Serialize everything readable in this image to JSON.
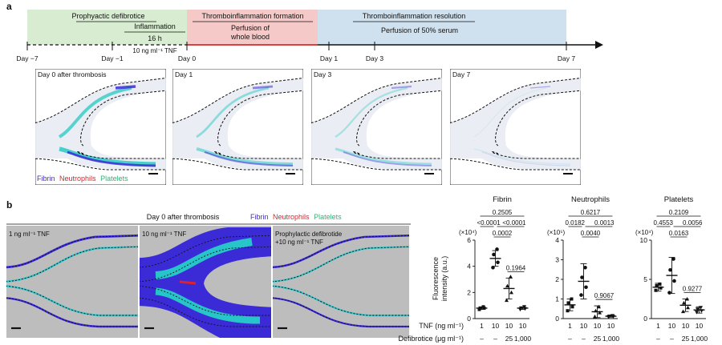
{
  "panel_a": {
    "label": "a",
    "phases": {
      "prophylactic": "Prophyactic defibrotice",
      "inflammation": "Inflammation",
      "duration": "16 h",
      "tnf": "10 ng ml⁻¹ TNF",
      "formation": "Thromboinflammation formation",
      "perfusion_blood": "Perfusion of",
      "perfusion_blood2": "whole blood",
      "resolution": "Thromboinflammation resolution",
      "perfusion_serum": "Perfusion of 50% serum"
    },
    "days": [
      "Day −7",
      "Day −1",
      "Day 0",
      "Day 1",
      "Day 3",
      "Day 7"
    ],
    "images": [
      {
        "title": "Day 0 after thrombosis"
      },
      {
        "title": "Day 1"
      },
      {
        "title": "Day 3"
      },
      {
        "title": "Day 7"
      }
    ],
    "legend": {
      "fibrin": "Fibrin",
      "neutrophils": "Neutrophils",
      "platelets": "Platelets"
    }
  },
  "panel_b": {
    "label": "b",
    "header": "Day 0 after thrombosis",
    "legend": {
      "fibrin": "Fibrin",
      "neutrophils": "Neutrophils",
      "platelets": "Platelets"
    },
    "images": [
      {
        "title": "1 ng ml⁻¹ TNF"
      },
      {
        "title": "10 ng ml⁻¹ TNF"
      },
      {
        "title": "Prophylactic defibrotide",
        "title2": "+10 ng ml⁻¹ TNF"
      }
    ],
    "ylabel": "Fluorescence",
    "ylabel2": "intensity (a.u.)",
    "tnf_label": "TNF (ng ml⁻¹)",
    "defib_label": "Defibrotice (μg ml⁻¹)",
    "tnf_values": [
      "1",
      "10",
      "10",
      "10"
    ],
    "defib_values": [
      "–",
      "–",
      "25",
      "1,000"
    ]
  },
  "colors": {
    "fibrin": "#3b2bd6",
    "neutrophils": "#e0202a",
    "platelets": "#2bb673",
    "prophylactic_box": "#d7ecd0",
    "formation_box": "#f6c9c9",
    "resolution_box": "#cfe0ee"
  },
  "chart_data": [
    {
      "type": "scatter",
      "title": "Fibrin",
      "scale_label": "(×10⁴)",
      "ylim": [
        0,
        6
      ],
      "yticks": [
        0,
        2,
        4,
        6
      ],
      "categories": [
        "1",
        "10",
        "25",
        "1,000"
      ],
      "means": [
        0.8,
        4.6,
        2.3,
        0.8
      ],
      "sd": [
        0.1,
        0.6,
        0.8,
        0.1
      ],
      "points": [
        [
          0.7,
          0.8,
          0.8,
          0.9
        ],
        [
          3.9,
          4.3,
          4.9,
          5.3
        ],
        [
          1.4,
          2.0,
          2.5,
          3.2
        ],
        [
          0.7,
          0.75,
          0.8,
          0.9
        ]
      ],
      "pvalues": [
        {
          "from": 0,
          "to": 3,
          "text": "0.2505"
        },
        {
          "from": 0,
          "to": 1,
          "text": "<0.0001"
        },
        {
          "from": 1,
          "to": 3,
          "text": "<0.0001"
        },
        {
          "from": 1,
          "to": 2,
          "text": "0.0002"
        },
        {
          "from": 2,
          "to": 3,
          "text": "0.1964"
        }
      ]
    },
    {
      "type": "scatter",
      "title": "Neutrophils",
      "scale_label": "(×10⁵)",
      "ylim": [
        0,
        4
      ],
      "yticks": [
        0,
        1,
        2,
        3,
        4
      ],
      "categories": [
        "1",
        "10",
        "25",
        "1,000"
      ],
      "means": [
        0.7,
        1.9,
        0.35,
        0.12
      ],
      "sd": [
        0.3,
        0.9,
        0.3,
        0.05
      ],
      "points": [
        [
          0.4,
          0.6,
          0.8,
          1.0
        ],
        [
          1.2,
          1.6,
          2.1,
          2.6
        ],
        [
          0.1,
          0.3,
          0.4,
          0.6
        ],
        [
          0.08,
          0.1,
          0.12,
          0.15
        ]
      ],
      "pvalues": [
        {
          "from": 0,
          "to": 3,
          "text": "0.6217"
        },
        {
          "from": 0,
          "to": 1,
          "text": "0.0182"
        },
        {
          "from": 1,
          "to": 3,
          "text": "0.0013"
        },
        {
          "from": 1,
          "to": 2,
          "text": "0.0040"
        },
        {
          "from": 2,
          "to": 3,
          "text": "0.9067"
        }
      ]
    },
    {
      "type": "scatter",
      "title": "Platelets",
      "scale_label": "(×10⁴)",
      "ylim": [
        0,
        10
      ],
      "yticks": [
        0,
        5,
        10
      ],
      "categories": [
        "1",
        "10",
        "25",
        "1,000"
      ],
      "means": [
        4.0,
        5.5,
        1.7,
        1.1
      ],
      "sd": [
        0.5,
        2.3,
        0.8,
        0.4
      ],
      "points": [
        [
          3.6,
          3.9,
          4.2,
          4.4
        ],
        [
          3.3,
          4.8,
          6.2,
          7.6
        ],
        [
          0.9,
          1.4,
          2.0,
          2.5
        ],
        [
          0.8,
          1.0,
          1.2,
          1.4
        ]
      ],
      "pvalues": [
        {
          "from": 0,
          "to": 3,
          "text": "0.2109"
        },
        {
          "from": 0,
          "to": 1,
          "text": "0.4553"
        },
        {
          "from": 1,
          "to": 3,
          "text": "0.0056"
        },
        {
          "from": 1,
          "to": 2,
          "text": "0.0163"
        },
        {
          "from": 2,
          "to": 3,
          "text": "0.9277"
        }
      ]
    }
  ]
}
